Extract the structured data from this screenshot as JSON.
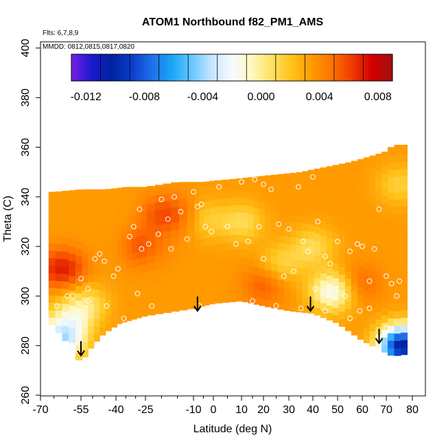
{
  "chart_data": {
    "type": "heatmap",
    "title": "ATOM1 Northbound f82_PM1_AMS",
    "annotations": [
      "Flts: 6,7,8,9",
      "MMDD: 0812,0815,0817,0820"
    ],
    "xlabel": "Latitude (deg N)",
    "ylabel": "Theta (C)",
    "xlim": [
      -70,
      80
    ],
    "ylim": [
      260,
      400
    ],
    "x_ticks": [
      -70,
      -55,
      -40,
      -25,
      -10,
      0,
      10,
      20,
      30,
      40,
      50,
      60,
      70,
      80
    ],
    "x_tick_labels": [
      "-70",
      "-55",
      "-40",
      "-25",
      "-10",
      "0",
      "10",
      "20",
      "30",
      "40",
      "50",
      "60",
      "70",
      "80"
    ],
    "x_minor_ticks": [
      -65,
      -60,
      -50,
      -45,
      -35,
      -30,
      -20,
      -15,
      -5,
      5,
      15,
      25,
      35,
      45,
      55,
      65,
      75
    ],
    "y_ticks": [
      260,
      280,
      300,
      320,
      340,
      360,
      380,
      400
    ],
    "y_tick_labels": [
      "260",
      "280",
      "300",
      "320",
      "340",
      "360",
      "380",
      "400"
    ],
    "colorbar": {
      "range": [
        -0.013,
        0.009
      ],
      "ticks": [
        -0.012,
        -0.008,
        -0.004,
        0.0,
        0.004,
        0.008
      ],
      "tick_labels": [
        "-0.012",
        "-0.008",
        "-0.004",
        "0.000",
        "0.004",
        "0.008"
      ],
      "colors": [
        "#7a1fe0",
        "#1a1ad0",
        "#0022a0",
        "#0b3dc9",
        "#1f6ee8",
        "#1aa6f5",
        "#66c8ff",
        "#c6e6ff",
        "#f6fbff",
        "#fff8c0",
        "#ffe060",
        "#ffc11a",
        "#ff9a00",
        "#ff7200",
        "#ef3a00",
        "#d00000",
        "#a01010"
      ]
    },
    "coverage": {
      "top": [
        [
          -65,
          342
        ],
        [
          -55,
          343
        ],
        [
          -45,
          343
        ],
        [
          -35,
          344
        ],
        [
          -25,
          344
        ],
        [
          -15,
          346
        ],
        [
          -5,
          346
        ],
        [
          5,
          347
        ],
        [
          15,
          348
        ],
        [
          25,
          349
        ],
        [
          35,
          350
        ],
        [
          45,
          352
        ],
        [
          55,
          354
        ],
        [
          62,
          356
        ],
        [
          69,
          358
        ],
        [
          73,
          361
        ]
      ],
      "bottom": [
        [
          -67,
          290
        ],
        [
          -60,
          281
        ],
        [
          -55,
          273
        ],
        [
          -50,
          280
        ],
        [
          -45,
          285
        ],
        [
          -38,
          289
        ],
        [
          -25,
          292
        ],
        [
          -10,
          295
        ],
        [
          0,
          297
        ],
        [
          10,
          298
        ],
        [
          20,
          296
        ],
        [
          30,
          294
        ],
        [
          40,
          293
        ],
        [
          50,
          289
        ],
        [
          60,
          282
        ],
        [
          68,
          278
        ],
        [
          72,
          276
        ],
        [
          76,
          276
        ],
        [
          78,
          277
        ]
      ]
    },
    "field": {
      "base": 0.0035,
      "anomalies": [
        {
          "lat": -62,
          "theta": 282,
          "value": -0.0065
        },
        {
          "lat": -59,
          "theta": 291,
          "value": -0.003
        },
        {
          "lat": 48,
          "theta": 302,
          "value": -0.0055
        },
        {
          "lat": 76,
          "theta": 280,
          "value": -0.014
        },
        {
          "lat": -62,
          "theta": 311,
          "value": 0.0035
        },
        {
          "lat": -28,
          "theta": 320,
          "value": 0.002
        },
        {
          "lat": -18,
          "theta": 333,
          "value": 0.0025
        },
        {
          "lat": 20,
          "theta": 305,
          "value": 0.002
        },
        {
          "lat": 58,
          "theta": 305,
          "value": 0.002
        },
        {
          "lat": -4,
          "theta": 331,
          "value": -0.0018
        },
        {
          "lat": 11,
          "theta": 330,
          "value": -0.0025
        },
        {
          "lat": 27,
          "theta": 313,
          "value": -0.0022
        },
        {
          "lat": 40,
          "theta": 320,
          "value": -0.0025
        },
        {
          "lat": 75,
          "theta": 345,
          "value": -0.002
        },
        {
          "lat": -52,
          "theta": 297,
          "value": -0.0025
        }
      ]
    },
    "observation_points": [
      [
        -66,
        290
      ],
      [
        -64,
        296
      ],
      [
        -61,
        294
      ],
      [
        -58,
        300
      ],
      [
        -55,
        307
      ],
      [
        -52,
        303
      ],
      [
        -49,
        315
      ],
      [
        -47,
        317
      ],
      [
        -45,
        314
      ],
      [
        -41,
        308
      ],
      [
        -39,
        311
      ],
      [
        -36,
        291
      ],
      [
        -33,
        324
      ],
      [
        -31,
        328
      ],
      [
        -28,
        335
      ],
      [
        -27,
        319
      ],
      [
        -24,
        321
      ],
      [
        -21,
        325
      ],
      [
        -20,
        339
      ],
      [
        -18,
        331
      ],
      [
        -16,
        340
      ],
      [
        -14,
        334
      ],
      [
        -12,
        323
      ],
      [
        -10,
        342
      ],
      [
        -8,
        336
      ],
      [
        -6,
        337
      ],
      [
        -4,
        328
      ],
      [
        -1,
        326
      ],
      [
        2,
        344
      ],
      [
        5,
        328
      ],
      [
        8,
        321
      ],
      [
        10,
        346
      ],
      [
        13,
        322
      ],
      [
        16,
        347
      ],
      [
        18,
        328
      ],
      [
        20,
        345
      ],
      [
        23,
        343
      ],
      [
        26,
        329
      ],
      [
        28,
        308
      ],
      [
        30,
        327
      ],
      [
        32,
        310
      ],
      [
        34,
        344
      ],
      [
        36,
        322
      ],
      [
        38,
        318
      ],
      [
        40,
        348
      ],
      [
        42,
        330
      ],
      [
        45,
        316
      ],
      [
        47,
        313
      ],
      [
        50,
        322
      ],
      [
        53,
        300
      ],
      [
        55,
        318
      ],
      [
        58,
        321
      ],
      [
        60,
        320
      ],
      [
        63,
        306
      ],
      [
        65,
        319
      ],
      [
        67,
        335
      ],
      [
        70,
        308
      ],
      [
        72,
        305
      ],
      [
        74,
        300
      ],
      [
        -44,
        296
      ],
      [
        -29,
        301
      ],
      [
        -23,
        296
      ],
      [
        -7,
        296
      ],
      [
        5,
        296
      ],
      [
        15,
        298
      ],
      [
        25,
        296
      ],
      [
        35,
        295
      ],
      [
        45,
        294
      ],
      [
        55,
        291
      ],
      [
        63,
        295
      ],
      [
        70,
        287
      ],
      [
        -60,
        300
      ],
      [
        -68,
        312
      ],
      [
        -52,
        298
      ],
      [
        20,
        315
      ],
      [
        -17,
        319
      ],
      [
        59,
        294
      ],
      [
        41,
        303
      ],
      [
        75,
        306
      ]
    ],
    "arrows": [
      {
        "lat": -55,
        "theta": 276
      },
      {
        "lat": -8,
        "theta": 294
      },
      {
        "lat": 39,
        "theta": 294
      },
      {
        "lat": 67,
        "theta": 281
      }
    ]
  }
}
